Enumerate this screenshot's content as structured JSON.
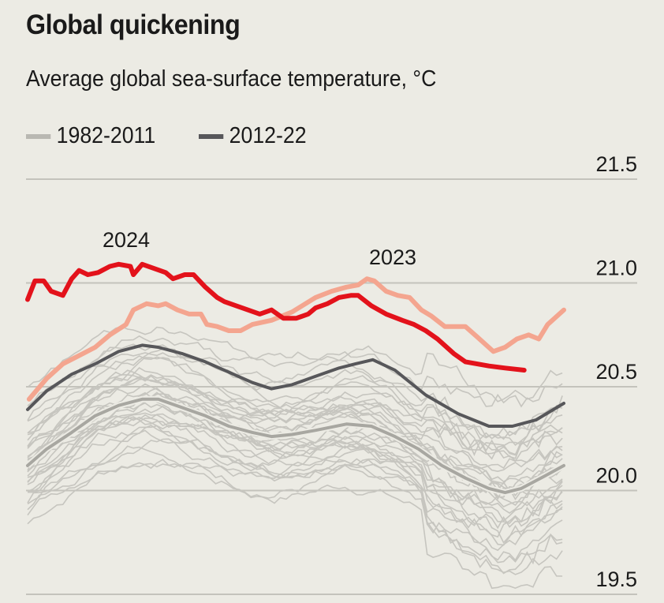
{
  "chart_data": {
    "type": "line",
    "title": "Global quickening",
    "subtitle": "Average global sea-surface temperature, °C",
    "xlabel": "",
    "ylabel": "",
    "x_unit": "day of year",
    "xlim": [
      0,
      365
    ],
    "ylim": [
      19.5,
      21.5
    ],
    "yticks": [
      "21.5",
      "21.0",
      "20.5",
      "20.0",
      "19.5"
    ],
    "ytick_values": [
      21.5,
      21.0,
      20.5,
      20.0,
      19.5
    ],
    "grid": true,
    "legend": {
      "placement": "top-left",
      "entries": [
        {
          "label": "1982-2011",
          "color": "#b9b8b2"
        },
        {
          "label": "2012-22",
          "color": "#57575a"
        }
      ]
    },
    "annotations": [
      {
        "text": "2024",
        "series": "2024"
      },
      {
        "text": "2023",
        "series": "2023"
      }
    ],
    "series": [
      {
        "name": "1982-2011 mean",
        "color": "#a8a7a1",
        "x": [
          0,
          13,
          30,
          46,
          62,
          78,
          89,
          105,
          121,
          137,
          153,
          166,
          180,
          196,
          217,
          234,
          250,
          266,
          282,
          298,
          314,
          325,
          336,
          352,
          365
        ],
        "values": [
          20.12,
          20.2,
          20.28,
          20.36,
          20.41,
          20.44,
          20.44,
          20.4,
          20.36,
          20.31,
          20.28,
          20.26,
          20.27,
          20.29,
          20.32,
          20.31,
          20.26,
          20.2,
          20.12,
          20.06,
          20.01,
          19.99,
          20.01,
          20.07,
          20.12
        ]
      },
      {
        "name": "2012-22",
        "color": "#57575a",
        "x": [
          0,
          13,
          30,
          46,
          62,
          78,
          89,
          105,
          121,
          137,
          153,
          166,
          180,
          196,
          212,
          223,
          235,
          250,
          271,
          293,
          314,
          330,
          346,
          365
        ],
        "values": [
          20.39,
          20.48,
          20.56,
          20.61,
          20.67,
          20.7,
          20.69,
          20.66,
          20.62,
          20.57,
          20.52,
          20.49,
          20.51,
          20.55,
          20.59,
          20.61,
          20.63,
          20.58,
          20.46,
          20.37,
          20.31,
          20.31,
          20.34,
          20.42
        ]
      },
      {
        "name": "2023",
        "color": "#f4a58f",
        "x": [
          1,
          13,
          24,
          35,
          46,
          56,
          67,
          72,
          81,
          89,
          94,
          102,
          110,
          118,
          122,
          129,
          137,
          145,
          153,
          166,
          180,
          196,
          207,
          217,
          225,
          231,
          236,
          244,
          252,
          260,
          268,
          275,
          284,
          298,
          306,
          317,
          325,
          333,
          341,
          348,
          354,
          365
        ],
        "values": [
          20.44,
          20.54,
          20.61,
          20.65,
          20.69,
          20.75,
          20.8,
          20.87,
          20.9,
          20.89,
          20.9,
          20.87,
          20.85,
          20.85,
          20.8,
          20.79,
          20.77,
          20.77,
          20.8,
          20.82,
          20.86,
          20.93,
          20.96,
          20.98,
          20.99,
          21.02,
          21.01,
          20.96,
          20.94,
          20.93,
          20.87,
          20.84,
          20.79,
          20.79,
          20.74,
          20.67,
          20.69,
          20.73,
          20.75,
          20.73,
          20.8,
          20.87
        ]
      },
      {
        "name": "2024",
        "color": "#e3121b",
        "x": [
          0,
          5,
          11,
          16,
          24,
          30,
          35,
          41,
          48,
          56,
          62,
          70,
          72,
          78,
          86,
          94,
          99,
          107,
          113,
          121,
          129,
          134,
          142,
          150,
          158,
          166,
          174,
          183,
          191,
          196,
          204,
          212,
          220,
          225,
          234,
          244,
          255,
          263,
          271,
          279,
          290,
          298,
          306,
          314,
          325,
          338
        ],
        "values": [
          20.92,
          21.01,
          21.01,
          20.96,
          20.94,
          21.02,
          21.06,
          21.04,
          21.05,
          21.08,
          21.09,
          21.08,
          21.04,
          21.09,
          21.07,
          21.05,
          21.02,
          21.04,
          21.04,
          20.98,
          20.93,
          20.91,
          20.89,
          20.87,
          20.85,
          20.87,
          20.83,
          20.83,
          20.85,
          20.88,
          20.9,
          20.93,
          20.94,
          20.94,
          20.89,
          20.85,
          20.82,
          20.8,
          20.77,
          20.73,
          20.66,
          20.62,
          20.61,
          20.6,
          20.59,
          20.58
        ]
      }
    ],
    "individual_years_offsets": [
      -0.28,
      -0.24,
      -0.21,
      -0.19,
      -0.17,
      -0.15,
      -0.13,
      -0.12,
      -0.1,
      -0.09,
      -0.07,
      -0.06,
      -0.05,
      -0.03,
      -0.02,
      -0.01,
      0.0,
      0.01,
      0.02,
      0.04,
      0.05,
      0.06,
      0.08,
      0.09,
      0.11,
      0.12,
      0.14,
      0.16,
      0.18,
      0.2,
      0.23,
      0.27,
      0.31,
      0.36
    ]
  }
}
